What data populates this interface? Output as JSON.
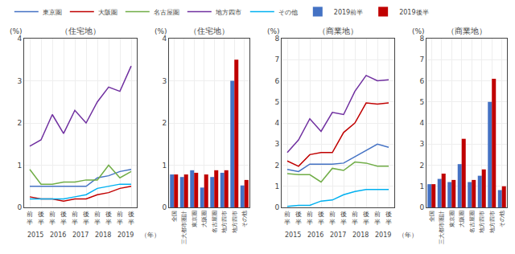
{
  "chart_data": [
    {
      "type": "line",
      "title": "（住宅地）",
      "y_label": "(%)",
      "x_label": "（年）",
      "annotations": [
        "2015",
        "2016",
        "2017",
        "2018",
        "2019"
      ],
      "categories": [
        "前半",
        "後半",
        "前半",
        "後半",
        "前半",
        "後半",
        "前半",
        "後半",
        "前半",
        "後半"
      ],
      "series": [
        {
          "name": "東京圏",
          "color": "#4472c4",
          "values": [
            0.5,
            0.5,
            0.5,
            0.5,
            0.5,
            0.5,
            0.7,
            0.75,
            0.85,
            0.9
          ]
        },
        {
          "name": "大阪圏",
          "color": "#c00000",
          "values": [
            0.25,
            0.2,
            0.2,
            0.15,
            0.2,
            0.2,
            0.3,
            0.35,
            0.45,
            0.5
          ]
        },
        {
          "name": "名古屋圏",
          "color": "#70ad47",
          "values": [
            0.9,
            0.55,
            0.55,
            0.6,
            0.6,
            0.65,
            0.65,
            1.0,
            0.7,
            0.85
          ]
        },
        {
          "name": "地方四市",
          "color": "#7030a0",
          "values": [
            1.45,
            1.6,
            2.2,
            1.75,
            2.3,
            2.0,
            2.5,
            2.85,
            2.75,
            3.35
          ]
        },
        {
          "name": "その他",
          "color": "#00b0f0",
          "values": [
            0.2,
            0.2,
            0.2,
            0.2,
            0.25,
            0.3,
            0.45,
            0.5,
            0.55,
            0.55
          ]
        }
      ],
      "ylim": [
        0,
        4
      ],
      "yticks": [
        0,
        1,
        2,
        3,
        4
      ],
      "grid": true,
      "legend": "top"
    },
    {
      "type": "bar",
      "title": "（住宅地）",
      "y_label": "(%)",
      "categories": [
        "全国",
        "三大都市圏計",
        "東京圏",
        "大阪圏",
        "名古屋圏",
        "地方四市",
        "地方四市",
        "その他"
      ],
      "series": [
        {
          "name": "2019前半",
          "color": "#4472c4",
          "values": [
            0.78,
            0.72,
            0.88,
            0.47,
            0.72,
            0.82,
            3.0,
            0.52
          ]
        },
        {
          "name": "2019後半",
          "color": "#c00000",
          "values": [
            0.78,
            0.78,
            0.82,
            0.78,
            0.88,
            0.88,
            3.5,
            0.65
          ]
        }
      ],
      "ylim": [
        0,
        4
      ],
      "yticks": [
        0,
        1,
        2,
        3,
        4
      ],
      "grid": true,
      "legend": "top"
    },
    {
      "type": "line",
      "title": "（商業地）",
      "y_label": "(%)",
      "x_label": "（年）",
      "annotations": [
        "2015",
        "2016",
        "2017",
        "2018",
        "2019"
      ],
      "categories": [
        "前半",
        "後半",
        "前半",
        "後半",
        "前半",
        "後半",
        "前半",
        "後半",
        "前半",
        "後半"
      ],
      "series": [
        {
          "name": "東京圏",
          "color": "#4472c4",
          "values": [
            1.8,
            1.7,
            2.05,
            2.05,
            2.05,
            2.1,
            2.4,
            2.7,
            3.0,
            2.85
          ]
        },
        {
          "name": "大阪圏",
          "color": "#c00000",
          "values": [
            2.2,
            1.95,
            2.5,
            2.6,
            2.6,
            3.55,
            4.0,
            4.95,
            4.9,
            4.95
          ]
        },
        {
          "name": "名古屋圏",
          "color": "#70ad47",
          "values": [
            1.6,
            1.55,
            1.55,
            1.2,
            1.85,
            1.75,
            2.15,
            2.1,
            1.95,
            1.95
          ]
        },
        {
          "name": "地方四市",
          "color": "#7030a0",
          "values": [
            2.6,
            3.2,
            4.2,
            3.6,
            4.5,
            4.4,
            5.5,
            6.25,
            6.0,
            6.05
          ]
        },
        {
          "name": "その他",
          "color": "#00b0f0",
          "values": [
            0.05,
            0.1,
            0.1,
            0.3,
            0.35,
            0.6,
            0.75,
            0.85,
            0.85,
            0.85
          ]
        }
      ],
      "ylim": [
        0,
        8
      ],
      "yticks": [
        0,
        1,
        2,
        3,
        4,
        5,
        6,
        7,
        8
      ],
      "grid": true,
      "legend": "top"
    },
    {
      "type": "bar",
      "title": "（商業地）",
      "y_label": "(%)",
      "categories": [
        "全国",
        "三大都市圏計",
        "東京圏",
        "大阪圏",
        "名古屋圏",
        "地方四市",
        "地方四市",
        "その他"
      ],
      "series": [
        {
          "name": "2019前半",
          "color": "#4472c4",
          "values": [
            1.1,
            1.35,
            1.2,
            2.05,
            1.2,
            1.5,
            5.0,
            0.82
          ]
        },
        {
          "name": "2019後半",
          "color": "#c00000",
          "values": [
            1.1,
            1.6,
            1.3,
            3.25,
            1.3,
            1.8,
            6.1,
            1.0
          ]
        }
      ],
      "ylim": [
        0,
        8
      ],
      "yticks": [
        0,
        1,
        2,
        3,
        4,
        5,
        6,
        7,
        8
      ],
      "grid": true,
      "legend": "top"
    }
  ]
}
